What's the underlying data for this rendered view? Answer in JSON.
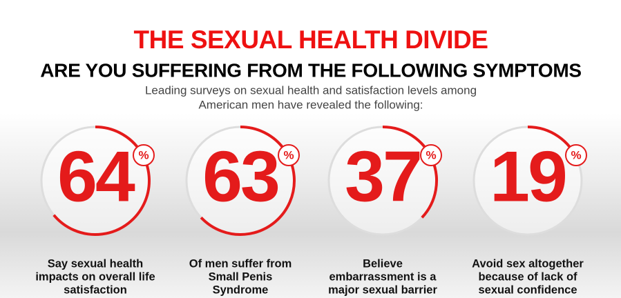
{
  "header": {
    "title": "THE SEXUAL HEALTH DIVIDE",
    "subtitle": "ARE YOU SUFFERING FROM THE FOLLOWING SYMPTOMS",
    "intro": [
      "Leading surveys on sexual health and satisfaction levels among",
      "American men have revealed the following:"
    ]
  },
  "stats": [
    {
      "value": 64,
      "unit": "%",
      "description": [
        "Say sexual health",
        "impacts on overall life",
        "satisfaction"
      ]
    },
    {
      "value": 63,
      "unit": "%",
      "description": [
        "Of men suffer from",
        "Small Penis",
        "Syndrome"
      ]
    },
    {
      "value": 37,
      "unit": "%",
      "description": [
        "Believe",
        "embarrassment is a",
        "major sexual barrier"
      ]
    },
    {
      "value": 19,
      "unit": "%",
      "description": [
        "Avoid sex altogether",
        "because of lack of",
        "sexual confidence"
      ]
    }
  ]
}
